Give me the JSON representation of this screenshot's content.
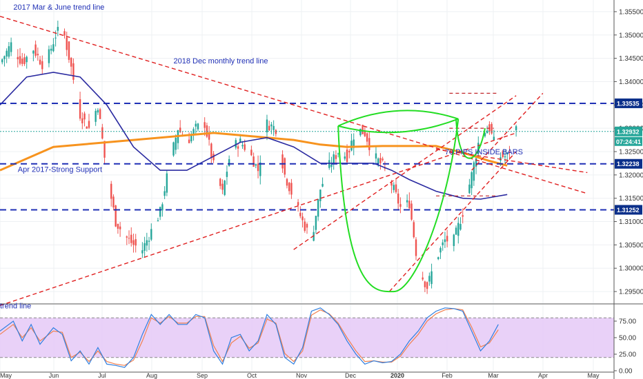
{
  "colors": {
    "up": "#26a69a",
    "down": "#ef5350",
    "ma_fast": "#2a2aa0",
    "ma_slow": "#f7931e",
    "level_line": "#1f2fb5",
    "trend_line": "#e02020",
    "pattern": "#22dd22",
    "stoch_fill": "#e5c9f7",
    "stoch_k": "#2f7fe0",
    "stoch_d": "#f08050",
    "price_badge": "#0b2f8a",
    "current_badge": "#26a69a"
  },
  "chart_data": [
    {
      "type": "candlestick",
      "title": "",
      "ylim": [
        1.2925,
        1.3575
      ],
      "y_ticks": [
        "1.35500",
        "1.35000",
        "1.34500",
        "1.34000",
        "1.33500",
        "1.33000",
        "1.32500",
        "1.32000",
        "1.31500",
        "1.31000",
        "1.30500",
        "1.30000",
        "1.29500"
      ],
      "x_ticks": [
        "May",
        "Jun",
        "Jul",
        "Aug",
        "Sep",
        "Oct",
        "Nov",
        "Dec",
        "2020",
        "Feb",
        "Mar",
        "Apr",
        "May"
      ],
      "close_series": [
        [
          0,
          1.344
        ],
        [
          5,
          1.348
        ],
        [
          10,
          1.344
        ],
        [
          15,
          1.347
        ],
        [
          20,
          1.343
        ],
        [
          25,
          1.35
        ],
        [
          28,
          1.352
        ],
        [
          32,
          1.343
        ],
        [
          36,
          1.333
        ],
        [
          40,
          1.33
        ],
        [
          44,
          1.335
        ],
        [
          48,
          1.32
        ],
        [
          52,
          1.31
        ],
        [
          56,
          1.307
        ],
        [
          60,
          1.305
        ],
        [
          64,
          1.304
        ],
        [
          68,
          1.308
        ],
        [
          72,
          1.312
        ],
        [
          76,
          1.322
        ],
        [
          80,
          1.33
        ],
        [
          84,
          1.327
        ],
        [
          88,
          1.33
        ],
        [
          92,
          1.331
        ],
        [
          96,
          1.322
        ],
        [
          100,
          1.316
        ],
        [
          104,
          1.326
        ],
        [
          108,
          1.327
        ],
        [
          112,
          1.325
        ],
        [
          116,
          1.321
        ],
        [
          120,
          1.331
        ],
        [
          124,
          1.33
        ],
        [
          128,
          1.32
        ],
        [
          132,
          1.315
        ],
        [
          136,
          1.31
        ],
        [
          140,
          1.306
        ],
        [
          144,
          1.317
        ],
        [
          148,
          1.322
        ],
        [
          152,
          1.325
        ],
        [
          156,
          1.324
        ],
        [
          160,
          1.33
        ],
        [
          164,
          1.329
        ],
        [
          168,
          1.324
        ],
        [
          172,
          1.322
        ],
        [
          176,
          1.318
        ],
        [
          180,
          1.313
        ],
        [
          184,
          1.314
        ],
        [
          188,
          1.3
        ],
        [
          192,
          1.296
        ],
        [
          196,
          1.302
        ],
        [
          200,
          1.306
        ],
        [
          204,
          1.306
        ],
        [
          208,
          1.312
        ],
        [
          212,
          1.32
        ],
        [
          216,
          1.329
        ],
        [
          220,
          1.33
        ],
        [
          224,
          1.324
        ],
        [
          228,
          1.324
        ],
        [
          232,
          1.33
        ]
      ],
      "ma_fast": [
        [
          0,
          1.335
        ],
        [
          12,
          1.341
        ],
        [
          24,
          1.342
        ],
        [
          36,
          1.341
        ],
        [
          48,
          1.335
        ],
        [
          60,
          1.326
        ],
        [
          72,
          1.321
        ],
        [
          84,
          1.321
        ],
        [
          96,
          1.324
        ],
        [
          108,
          1.327
        ],
        [
          120,
          1.328
        ],
        [
          132,
          1.326
        ],
        [
          144,
          1.3225
        ],
        [
          156,
          1.3225
        ],
        [
          168,
          1.3225
        ],
        [
          176,
          1.321
        ],
        [
          184,
          1.319
        ],
        [
          196,
          1.3165
        ],
        [
          208,
          1.315
        ],
        [
          216,
          1.3148
        ],
        [
          228,
          1.3158
        ]
      ],
      "ma_slow": [
        [
          0,
          1.321
        ],
        [
          24,
          1.326
        ],
        [
          48,
          1.327
        ],
        [
          72,
          1.328
        ],
        [
          96,
          1.329
        ],
        [
          108,
          1.3285
        ],
        [
          120,
          1.328
        ],
        [
          132,
          1.3275
        ],
        [
          144,
          1.3265
        ],
        [
          156,
          1.326
        ],
        [
          172,
          1.3262
        ],
        [
          184,
          1.3262
        ],
        [
          196,
          1.3262
        ],
        [
          208,
          1.3248
        ],
        [
          220,
          1.323
        ],
        [
          228,
          1.322
        ]
      ],
      "horizontal_levels": [
        {
          "price": 1.33535,
          "label": "1.33535"
        },
        {
          "price": 1.32238,
          "label": "1.32238"
        },
        {
          "price": 1.31252,
          "label": "1.31252"
        }
      ],
      "current_price": {
        "price": 1.32932,
        "label": "1.32932",
        "countdown": "07:24:41"
      },
      "trend_lines": [
        {
          "from": [
            0,
            1.354
          ],
          "to": [
            264,
            1.316
          ]
        },
        {
          "from": [
            0,
            1.292
          ],
          "to": [
            232,
            1.329
          ]
        },
        {
          "from": [
            132,
            1.304
          ],
          "to": [
            232,
            1.337
          ]
        },
        {
          "from": [
            175,
            1.295
          ],
          "to": [
            232,
            1.325
          ]
        },
        {
          "from": [
            212,
            1.321
          ],
          "to": [
            244,
            1.3375
          ]
        },
        {
          "from": [
            196,
            1.3255
          ],
          "to": [
            264,
            1.3205
          ]
        }
      ],
      "pattern_levels": [
        {
          "from": [
            202,
            1.3375
          ],
          "to": [
            224,
            1.3375
          ]
        },
        {
          "from": [
            202,
            1.33
          ],
          "to": [
            222,
            1.33
          ]
        },
        {
          "from": [
            196,
            1.3155
          ],
          "to": [
            224,
            1.3155
          ]
        }
      ],
      "cup": {
        "left": [
          152,
          1.3305
        ],
        "bottom": [
          177,
          1.295
        ],
        "right": [
          206,
          1.332
        ],
        "lip": 1.333
      },
      "handle": {
        "left": [
          205,
          1.332
        ],
        "bottom": [
          212,
          1.322
        ],
        "right": [
          218,
          1.33
        ]
      },
      "annotations": [
        {
          "text": "2017 Mar & June trend line",
          "at": [
            6,
            1.356
          ]
        },
        {
          "text": "2018 Dec monthly trend line",
          "at": [
            78,
            1.3445
          ]
        },
        {
          "text": "Apr 2017-Strong Support",
          "at": [
            8,
            1.3212
          ]
        },
        {
          "text": "70 PIPS INSIDE BARS",
          "at": [
            200,
            1.325
          ]
        },
        {
          "text": "trend line",
          "at": [
            0,
            1.292
          ]
        }
      ]
    },
    {
      "type": "line",
      "title": "",
      "ylim": [
        0,
        100
      ],
      "y_ticks": [
        "75.00",
        "50.00",
        "25.00",
        "0.00"
      ],
      "band": [
        20,
        80
      ],
      "series": [
        {
          "values": [
            [
              0,
              60
            ],
            [
              6,
              75
            ],
            [
              10,
              45
            ],
            [
              14,
              70
            ],
            [
              18,
              40
            ],
            [
              24,
              65
            ],
            [
              28,
              55
            ],
            [
              32,
              15
            ],
            [
              36,
              30
            ],
            [
              40,
              10
            ],
            [
              44,
              35
            ],
            [
              48,
              10
            ],
            [
              52,
              8
            ],
            [
              56,
              5
            ],
            [
              60,
              20
            ],
            [
              64,
              55
            ],
            [
              68,
              85
            ],
            [
              72,
              70
            ],
            [
              76,
              85
            ],
            [
              80,
              70
            ],
            [
              84,
              70
            ],
            [
              88,
              85
            ],
            [
              92,
              80
            ],
            [
              96,
              30
            ],
            [
              100,
              10
            ],
            [
              104,
              50
            ],
            [
              108,
              55
            ],
            [
              112,
              30
            ],
            [
              116,
              45
            ],
            [
              120,
              85
            ],
            [
              124,
              70
            ],
            [
              128,
              20
            ],
            [
              132,
              10
            ],
            [
              136,
              35
            ],
            [
              140,
              90
            ],
            [
              144,
              95
            ],
            [
              148,
              85
            ],
            [
              152,
              70
            ],
            [
              156,
              45
            ],
            [
              160,
              25
            ],
            [
              164,
              10
            ],
            [
              168,
              15
            ],
            [
              172,
              12
            ],
            [
              176,
              14
            ],
            [
              180,
              25
            ],
            [
              184,
              45
            ],
            [
              188,
              60
            ],
            [
              192,
              80
            ],
            [
              196,
              90
            ],
            [
              200,
              95
            ],
            [
              204,
              94
            ],
            [
              208,
              90
            ],
            [
              212,
              60
            ],
            [
              216,
              30
            ],
            [
              220,
              45
            ],
            [
              224,
              70
            ]
          ]
        },
        {
          "values": [
            [
              0,
              55
            ],
            [
              6,
              70
            ],
            [
              10,
              50
            ],
            [
              14,
              65
            ],
            [
              18,
              45
            ],
            [
              24,
              60
            ],
            [
              28,
              58
            ],
            [
              32,
              20
            ],
            [
              36,
              28
            ],
            [
              40,
              14
            ],
            [
              44,
              30
            ],
            [
              48,
              14
            ],
            [
              52,
              10
            ],
            [
              56,
              8
            ],
            [
              60,
              16
            ],
            [
              64,
              45
            ],
            [
              68,
              80
            ],
            [
              72,
              72
            ],
            [
              76,
              82
            ],
            [
              80,
              72
            ],
            [
              84,
              72
            ],
            [
              88,
              82
            ],
            [
              92,
              82
            ],
            [
              96,
              38
            ],
            [
              100,
              14
            ],
            [
              104,
              42
            ],
            [
              108,
              52
            ],
            [
              112,
              34
            ],
            [
              116,
              42
            ],
            [
              120,
              78
            ],
            [
              124,
              72
            ],
            [
              128,
              26
            ],
            [
              132,
              14
            ],
            [
              136,
              30
            ],
            [
              140,
              84
            ],
            [
              144,
              92
            ],
            [
              148,
              86
            ],
            [
              152,
              72
            ],
            [
              156,
              50
            ],
            [
              160,
              30
            ],
            [
              164,
              14
            ],
            [
              168,
              15
            ],
            [
              172,
              13
            ],
            [
              176,
              13
            ],
            [
              180,
              22
            ],
            [
              184,
              40
            ],
            [
              188,
              55
            ],
            [
              192,
              75
            ],
            [
              196,
              86
            ],
            [
              200,
              92
            ],
            [
              204,
              94
            ],
            [
              208,
              92
            ],
            [
              212,
              66
            ],
            [
              216,
              36
            ],
            [
              220,
              42
            ],
            [
              224,
              62
            ]
          ]
        }
      ]
    }
  ]
}
